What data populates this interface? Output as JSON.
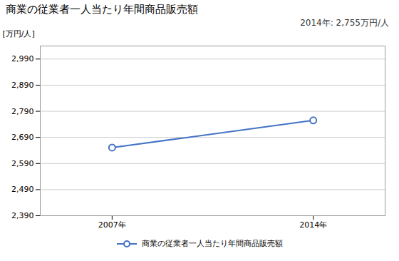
{
  "chart_data": {
    "type": "line",
    "title": "商業の従業者一人当たり年間商品販売額",
    "ylabel": "[万円/人]",
    "annotation": "2014年: 2,755万円/人",
    "x": [
      2007,
      2014
    ],
    "series": [
      {
        "name": "商業の従業者一人当たり年間商品販売額",
        "color": "#4472C4",
        "values": [
          2651,
          2755
        ]
      }
    ],
    "xlim": [
      2004.5,
      2016.5
    ],
    "xticks": [
      {
        "value": 2007,
        "label": "2007年"
      },
      {
        "value": 2014,
        "label": "2014年"
      }
    ],
    "ylim": [
      2390,
      3040
    ],
    "yticks": [
      {
        "value": 2390,
        "label": "2,390"
      },
      {
        "value": 2490,
        "label": "2,490"
      },
      {
        "value": 2590,
        "label": "2,590"
      },
      {
        "value": 2690,
        "label": "2,690"
      },
      {
        "value": 2790,
        "label": "2,790"
      },
      {
        "value": 2890,
        "label": "2,890"
      },
      {
        "value": 2990,
        "label": "2,990"
      }
    ],
    "grid": true,
    "legend": "bottom",
    "marker": "circle"
  }
}
